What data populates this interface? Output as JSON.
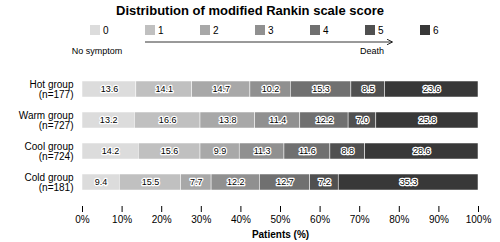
{
  "chart_data": {
    "type": "bar",
    "orientation": "horizontal",
    "stacked": true,
    "title": "Distribution of modified Rankin scale score",
    "xlabel": "Patients (%)",
    "categories": [
      "Hot group\n(n=177)",
      "Warm group\n(n=727)",
      "Cool group\n(n=724)",
      "Cold group\n(n=181)"
    ],
    "series": [
      {
        "name": "0",
        "color": "#dcdcdc",
        "values": [
          13.6,
          13.2,
          14.2,
          9.4
        ],
        "value_labels": [
          "13.6",
          "13.2",
          "14.2",
          "9.4"
        ]
      },
      {
        "name": "1",
        "color": "#c0c0c0",
        "values": [
          14.1,
          16.6,
          15.6,
          15.5
        ],
        "value_labels": [
          "14.1",
          "16.6",
          "15.6",
          "15.5"
        ]
      },
      {
        "name": "2",
        "color": "#a8a8a8",
        "values": [
          14.7,
          13.8,
          9.9,
          7.7
        ],
        "value_labels": [
          "14.7",
          "13.8",
          "9.9",
          "7.7"
        ]
      },
      {
        "name": "3",
        "color": "#909090",
        "values": [
          10.2,
          11.4,
          11.3,
          12.2
        ],
        "value_labels": [
          "10.2",
          "11.4",
          "11.3",
          "12.2"
        ]
      },
      {
        "name": "4",
        "color": "#707070",
        "values": [
          15.3,
          12.2,
          11.6,
          12.7
        ],
        "value_labels": [
          "15.3",
          "12.2",
          "11.6",
          "12.7"
        ]
      },
      {
        "name": "5",
        "color": "#505050",
        "values": [
          8.5,
          7.0,
          8.8,
          7.2
        ],
        "value_labels": [
          "8.5",
          "7.0",
          "8.8",
          "7.2"
        ]
      },
      {
        "name": "6",
        "color": "#383838",
        "values": [
          23.6,
          25.8,
          28.6,
          35.3
        ],
        "value_labels": [
          "23.6",
          "25.8",
          "28.6",
          "35.3"
        ]
      }
    ],
    "xlim": [
      0,
      100
    ],
    "xticks": [
      {
        "value": 0,
        "label": "0%"
      },
      {
        "value": 10,
        "label": "10%"
      },
      {
        "value": 20,
        "label": "20%"
      },
      {
        "value": 30,
        "label": "30%"
      },
      {
        "value": 40,
        "label": "40%"
      },
      {
        "value": 50,
        "label": "50%"
      },
      {
        "value": 60,
        "label": "60%"
      },
      {
        "value": 70,
        "label": "70%"
      },
      {
        "value": 80,
        "label": "80%"
      },
      {
        "value": 90,
        "label": "90%"
      },
      {
        "value": 100,
        "label": "100%"
      }
    ],
    "data_labels": true,
    "grid": false,
    "legend": "top",
    "annotations": [
      {
        "text": "No symptom",
        "series": "0"
      },
      {
        "text": "Death",
        "series": "5",
        "arrow_from": "1"
      }
    ]
  }
}
